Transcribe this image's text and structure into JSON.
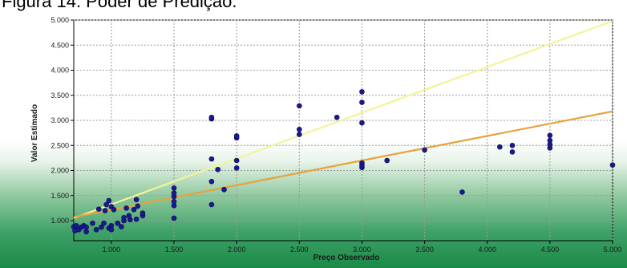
{
  "heading": "Figura 14: Poder de Predição.",
  "chart_data": {
    "type": "scatter",
    "xlabel": "Preço Observado",
    "ylabel": "Valor Estimado",
    "xlim": [
      700,
      5000
    ],
    "ylim": [
      600,
      5000
    ],
    "x_ticks": [
      1000,
      1500,
      2000,
      2500,
      3000,
      3500,
      4000,
      4500,
      5000
    ],
    "x_tick_labels": [
      "1.000",
      "1.500",
      "2.000",
      "2.500",
      "3.000",
      "3.500",
      "4.000",
      "4.500",
      "5.000"
    ],
    "y_ticks": [
      1000,
      1500,
      2000,
      2500,
      3000,
      3500,
      4000,
      4500,
      5000
    ],
    "y_tick_labels": [
      "1.000",
      "1.500",
      "2.000",
      "2.500",
      "3.000",
      "3.500",
      "4.000",
      "4.500",
      "5.000"
    ],
    "grid": true,
    "legend": "none",
    "colors": {
      "points": "#1a1a8c",
      "reference_line": "#f3f39a",
      "fit_line": "#e8a23a",
      "plot_background_top": "#ffffff",
      "plot_background_bottom": "#1e8f4c"
    },
    "lines": [
      {
        "role": "reference",
        "color": "#f3f39a",
        "points": [
          [
            700,
            1050
          ],
          [
            5000,
            4980
          ]
        ]
      },
      {
        "role": "fit",
        "color": "#e8a23a",
        "points": [
          [
            700,
            1070
          ],
          [
            5000,
            3180
          ]
        ]
      }
    ],
    "points": [
      [
        700,
        880
      ],
      [
        710,
        800
      ],
      [
        720,
        900
      ],
      [
        740,
        820
      ],
      [
        760,
        870
      ],
      [
        780,
        900
      ],
      [
        800,
        780
      ],
      [
        800,
        870
      ],
      [
        850,
        950
      ],
      [
        880,
        820
      ],
      [
        900,
        1230
      ],
      [
        920,
        870
      ],
      [
        940,
        950
      ],
      [
        950,
        1200
      ],
      [
        960,
        1320
      ],
      [
        980,
        1400
      ],
      [
        980,
        850
      ],
      [
        1000,
        1280
      ],
      [
        1000,
        900
      ],
      [
        1000,
        820
      ],
      [
        1020,
        1220
      ],
      [
        1050,
        950
      ],
      [
        1080,
        880
      ],
      [
        1100,
        1000
      ],
      [
        1100,
        1060
      ],
      [
        1120,
        1250
      ],
      [
        1140,
        1100
      ],
      [
        1150,
        1020
      ],
      [
        1180,
        1220
      ],
      [
        1200,
        1420
      ],
      [
        1200,
        1030
      ],
      [
        1210,
        1290
      ],
      [
        1250,
        1100
      ],
      [
        1250,
        1150
      ],
      [
        1500,
        1050
      ],
      [
        1500,
        1300
      ],
      [
        1500,
        1380
      ],
      [
        1500,
        1480
      ],
      [
        1500,
        1550
      ],
      [
        1500,
        1650
      ],
      [
        1800,
        1320
      ],
      [
        1800,
        1780
      ],
      [
        1800,
        2230
      ],
      [
        1800,
        3030
      ],
      [
        1800,
        3060
      ],
      [
        1850,
        2020
      ],
      [
        1900,
        1620
      ],
      [
        2000,
        2050
      ],
      [
        2000,
        2200
      ],
      [
        2000,
        2650
      ],
      [
        2000,
        2690
      ],
      [
        2500,
        2720
      ],
      [
        2500,
        2820
      ],
      [
        2500,
        3290
      ],
      [
        2800,
        3060
      ],
      [
        3000,
        2060
      ],
      [
        3000,
        2100
      ],
      [
        3000,
        2150
      ],
      [
        3000,
        2950
      ],
      [
        3000,
        3360
      ],
      [
        3000,
        3570
      ],
      [
        3200,
        2200
      ],
      [
        3500,
        2410
      ],
      [
        3800,
        1570
      ],
      [
        4100,
        2470
      ],
      [
        4200,
        2370
      ],
      [
        4200,
        2500
      ],
      [
        4500,
        2450
      ],
      [
        4500,
        2520
      ],
      [
        4500,
        2600
      ],
      [
        4500,
        2700
      ],
      [
        5000,
        2110
      ]
    ]
  }
}
